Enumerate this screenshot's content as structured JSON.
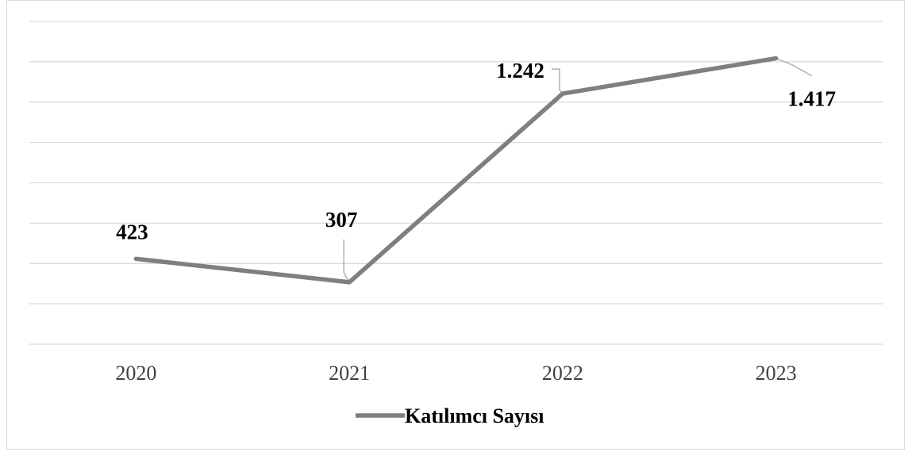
{
  "chart_data": {
    "type": "line",
    "categories": [
      "2020",
      "2021",
      "2022",
      "2023"
    ],
    "series": [
      {
        "name": "Katılımcı Sayısı",
        "values": [
          423,
          307,
          1242,
          1417
        ],
        "data_labels": [
          "423",
          "307",
          "1.242",
          "1.417"
        ],
        "color": "#7f7f7f"
      }
    ],
    "title": "",
    "xlabel": "",
    "ylabel": "",
    "ylim": [
      0,
      1600
    ],
    "grid": true,
    "legend": "bottom",
    "colors": {
      "line": "#7f7f7f",
      "grid": "#d9d9d9",
      "leader": "#a6a6a6",
      "tick_text": "#404040",
      "label_text": "#000000"
    }
  }
}
